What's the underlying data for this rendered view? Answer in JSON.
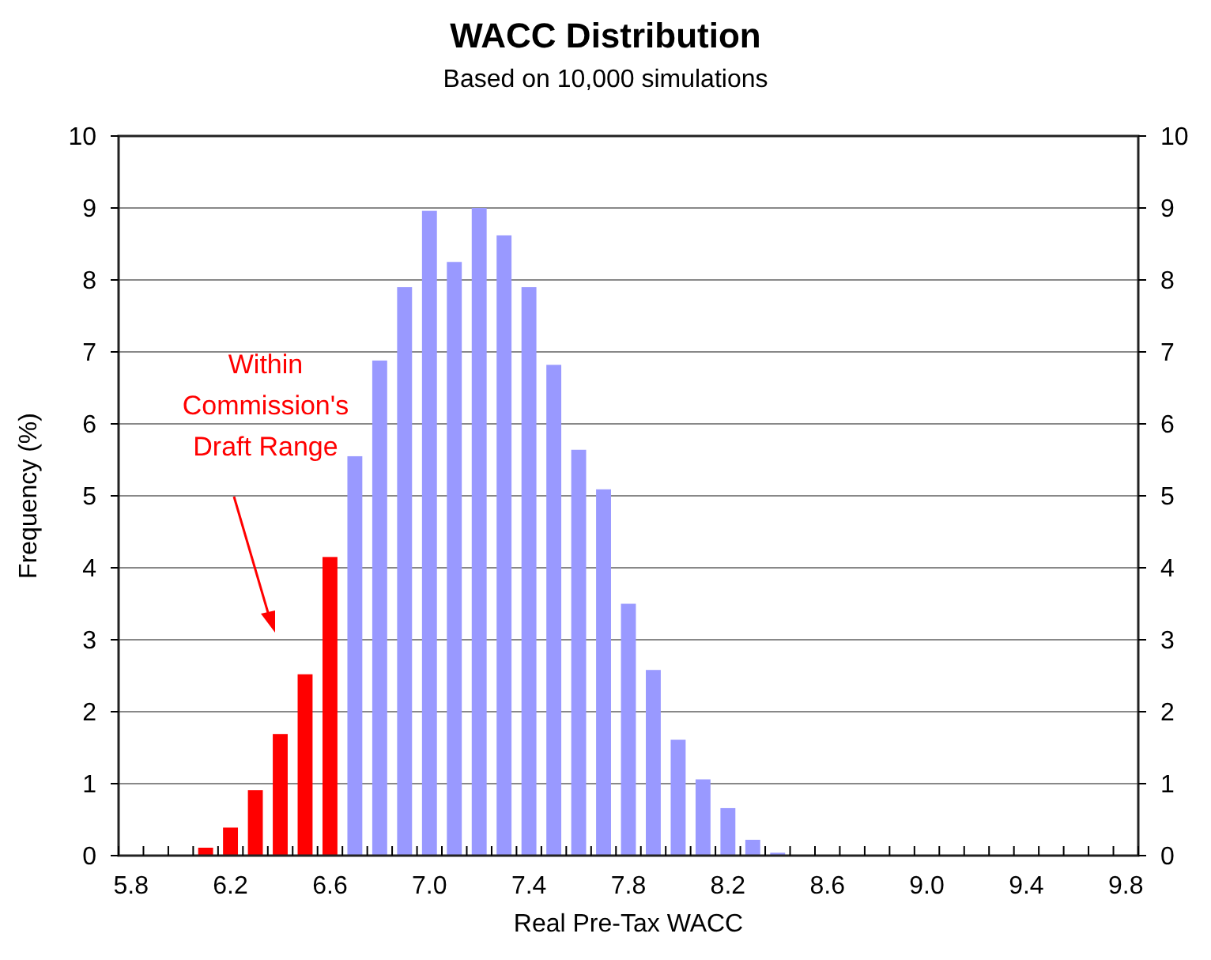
{
  "chart_data": {
    "type": "bar",
    "title": "WACC Distribution",
    "subtitle": "Based on 10,000 simulations",
    "xlabel": "Real Pre-Tax WACC",
    "ylabel": "Frequency (%)",
    "categories": [
      "5.8",
      null,
      null,
      null,
      "6.2",
      null,
      null,
      null,
      "6.6",
      null,
      null,
      null,
      "7.0",
      null,
      null,
      null,
      "7.4",
      null,
      null,
      null,
      "7.8",
      null,
      null,
      null,
      "8.2",
      null,
      null,
      null,
      "8.6",
      null,
      null,
      null,
      "9.0",
      null,
      null,
      null,
      "9.4",
      null,
      null,
      null,
      "9.8"
    ],
    "values": [
      0,
      0,
      0,
      0.11,
      0.39,
      0.91,
      1.69,
      2.52,
      4.15,
      5.55,
      6.88,
      7.9,
      8.96,
      8.25,
      9.0,
      8.62,
      7.9,
      6.82,
      5.64,
      5.09,
      3.5,
      2.58,
      1.61,
      1.06,
      0.66,
      0.22,
      0.04,
      0,
      0,
      0,
      0,
      0,
      0,
      0,
      0,
      0,
      0,
      0,
      0,
      0,
      0
    ],
    "colors": [
      "#ff0000",
      "#ff0000",
      "#ff0000",
      "#ff0000",
      "#ff0000",
      "#ff0000",
      "#ff0000",
      "#ff0000",
      "#ff0000",
      "#9999ff",
      "#9999ff",
      "#9999ff",
      "#9999ff",
      "#9999ff",
      "#9999ff",
      "#9999ff",
      "#9999ff",
      "#9999ff",
      "#9999ff",
      "#9999ff",
      "#9999ff",
      "#9999ff",
      "#9999ff",
      "#9999ff",
      "#9999ff",
      "#9999ff",
      "#9999ff",
      "#9999ff",
      "#9999ff",
      "#9999ff",
      "#9999ff",
      "#9999ff",
      "#9999ff",
      "#9999ff",
      "#9999ff",
      "#9999ff",
      "#9999ff",
      "#9999ff",
      "#9999ff",
      "#9999ff",
      "#9999ff"
    ],
    "ylim": [
      0,
      10
    ],
    "yticks": [
      0,
      1,
      2,
      3,
      4,
      5,
      6,
      7,
      8,
      9,
      10
    ],
    "y2lim": [
      0,
      10
    ],
    "y2ticks": [
      0,
      1,
      2,
      3,
      4,
      5,
      6,
      7,
      8,
      9,
      10
    ],
    "grid": "y",
    "annotations": [
      "Within\nCommission's\nDraft Range"
    ]
  }
}
